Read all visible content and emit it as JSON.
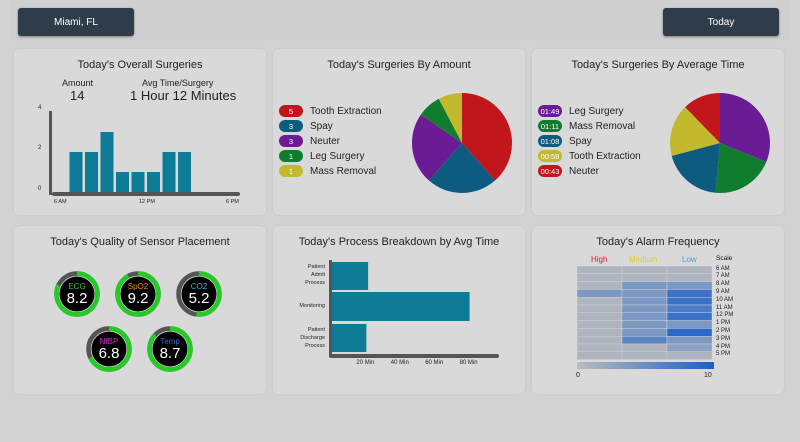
{
  "header": {
    "location_button": "Miami, FL",
    "date_button": "Today"
  },
  "overall": {
    "title": "Today's Overall Surgeries",
    "amount_label": "Amount",
    "amount_value": "14",
    "avg_label": "Avg Time/Surgery",
    "avg_value": "1 Hour 12 Minutes",
    "chart_data": {
      "type": "bar",
      "title": "",
      "x_tick_labels": [
        "6 AM",
        "12 PM",
        "6 PM"
      ],
      "y_tick_labels": [
        "0",
        "2",
        "4"
      ],
      "ylim": [
        0,
        4
      ],
      "values": [
        0,
        2,
        2,
        3,
        1,
        1,
        1,
        2,
        2
      ],
      "color": "#0e7c96"
    }
  },
  "by_amount": {
    "title": "Today's Surgeries By Amount",
    "items": [
      {
        "count": "5",
        "label": "Tooth Extraction",
        "color": "#c0161c"
      },
      {
        "count": "3",
        "label": "Spay",
        "color": "#0d5c80"
      },
      {
        "count": "3",
        "label": "Neuter",
        "color": "#6b1b93"
      },
      {
        "count": "1",
        "label": "Leg Surgery",
        "color": "#107c2e"
      },
      {
        "count": "1",
        "label": "Mass Removal",
        "color": "#c2ba2c"
      }
    ],
    "chart_data": {
      "type": "pie",
      "categories": [
        "Tooth Extraction",
        "Spay",
        "Neuter",
        "Leg Surgery",
        "Mass Removal"
      ],
      "values": [
        5,
        3,
        3,
        1,
        1
      ]
    }
  },
  "by_time": {
    "title": "Today's Surgeries By Average Time",
    "items": [
      {
        "time": "01:49",
        "label": "Leg Surgery",
        "color": "#6b1b93"
      },
      {
        "time": "01:11",
        "label": "Mass Removal",
        "color": "#107c2e"
      },
      {
        "time": "01:08",
        "label": "Spay",
        "color": "#0d5c80"
      },
      {
        "time": "00:59",
        "label": "Tooth Extraction",
        "color": "#c2ba2c"
      },
      {
        "time": "00:43",
        "label": "Neuter",
        "color": "#c0161c"
      }
    ],
    "chart_data": {
      "type": "pie",
      "categories": [
        "Leg Surgery",
        "Mass Removal",
        "Spay",
        "Tooth Extraction",
        "Neuter"
      ],
      "values": [
        109,
        71,
        68,
        59,
        43
      ]
    }
  },
  "sensors": {
    "title": "Today's Quality of Sensor Placement",
    "items": [
      {
        "name": "ECG",
        "value": "8.2",
        "label_color": "#3fbf3f",
        "fill": 0.82
      },
      {
        "name": "SpO2",
        "value": "9.2",
        "label_color": "#f08a1c",
        "fill": 0.92
      },
      {
        "name": "CO2",
        "value": "5.2",
        "label_color": "#3ab0e0",
        "fill": 0.52
      },
      {
        "name": "NIBP",
        "value": "6.8",
        "label_color": "#d02fd0",
        "fill": 0.68
      },
      {
        "name": "Temp",
        "value": "8.7",
        "label_color": "#3a6be0",
        "fill": 0.87
      }
    ]
  },
  "process": {
    "title": "Today's Process Breakdown by Avg Time",
    "chart_data": {
      "type": "bar",
      "orientation": "horizontal",
      "categories": [
        "Patient Admit Process",
        "Monitoring",
        "Patient Discharge Process"
      ],
      "category_lines": [
        [
          "Patient",
          "Admit",
          "Process"
        ],
        [
          "Monitoring"
        ],
        [
          "Patient",
          "Discharge",
          "Process"
        ]
      ],
      "values": [
        21,
        80,
        20
      ],
      "x_tick_labels": [
        "20 Min",
        "40 Min",
        "60 Min",
        "80 Min"
      ],
      "xlim": [
        0,
        100
      ],
      "color": "#0e7c96"
    }
  },
  "alarms": {
    "title": "Today's Alarm Frequency",
    "high_label": "High",
    "medium_label": "Medium",
    "low_label": "Low",
    "scale_label": "Scale",
    "high_color": "#e02020",
    "medium_color": "#e0d020",
    "low_color": "#40a0e0",
    "hours": [
      "6 AM",
      "7 AM",
      "8 AM",
      "9 AM",
      "10 AM",
      "11 AM",
      "12 PM",
      "1 PM",
      "2 PM",
      "3 PM",
      "4 PM",
      "5 PM"
    ],
    "chart_data": {
      "type": "heatmap",
      "columns": [
        "High",
        "Medium",
        "Low"
      ],
      "rows": [
        "6 AM",
        "7 AM",
        "8 AM",
        "9 AM",
        "10 AM",
        "11 AM",
        "12 PM",
        "1 PM",
        "2 PM",
        "3 PM",
        "4 PM",
        "5 PM"
      ],
      "values": [
        [
          1,
          1,
          1
        ],
        [
          1,
          1,
          1
        ],
        [
          1,
          4,
          4
        ],
        [
          4,
          4,
          8
        ],
        [
          1,
          4,
          8
        ],
        [
          1,
          4,
          7
        ],
        [
          1,
          4,
          8
        ],
        [
          1,
          4,
          4
        ],
        [
          1,
          4,
          9
        ],
        [
          1,
          6,
          4
        ],
        [
          1,
          1,
          3
        ],
        [
          1,
          1,
          1
        ]
      ],
      "scale_min": "0",
      "scale_max": "10"
    }
  }
}
